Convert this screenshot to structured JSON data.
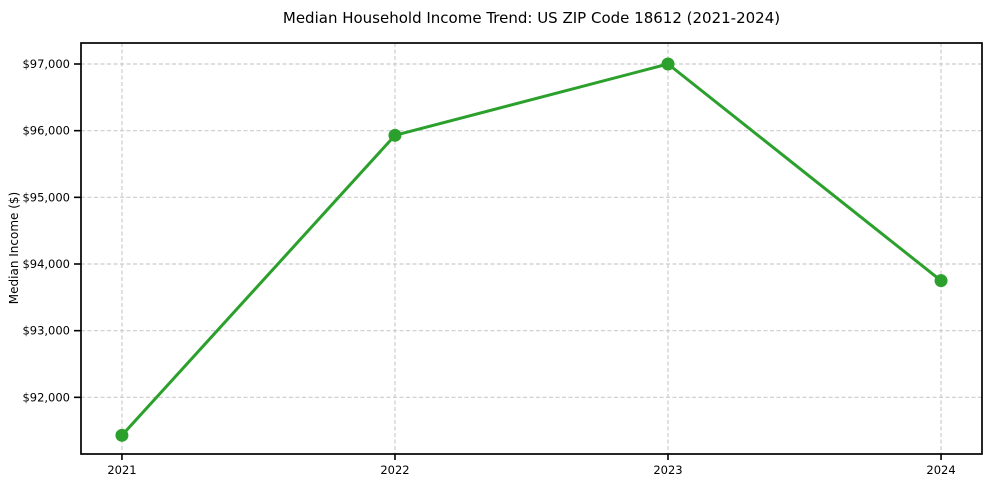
{
  "chart_data": {
    "type": "line",
    "title": "Median Household Income Trend: US ZIP Code 18612 (2021-2024)",
    "xlabel": "",
    "ylabel": "Median Income ($)",
    "x": [
      2021,
      2022,
      2023,
      2024
    ],
    "series": [
      {
        "name": "Median Household Income",
        "values": [
          91430,
          95930,
          97000,
          93750
        ]
      }
    ],
    "xticks": {
      "values": [
        2021,
        2022,
        2023,
        2024
      ],
      "labels": [
        "2021",
        "2022",
        "2023",
        "2024"
      ]
    },
    "yticks": {
      "values": [
        92000,
        93000,
        94000,
        95000,
        96000,
        97000
      ],
      "labels": [
        "$92,000",
        "$93,000",
        "$94,000",
        "$95,000",
        "$96,000",
        "$97,000"
      ]
    },
    "xlim": [
      2020.85,
      2024.15
    ],
    "ylim": [
      91150,
      97315
    ],
    "grid": true,
    "grid_style": "dashed",
    "legend": false,
    "colors": {
      "line": "#2ca02c",
      "marker": "#2ca02c",
      "grid": "#cccccc",
      "spine": "#000000",
      "text": "#000000",
      "background": "#ffffff"
    }
  }
}
